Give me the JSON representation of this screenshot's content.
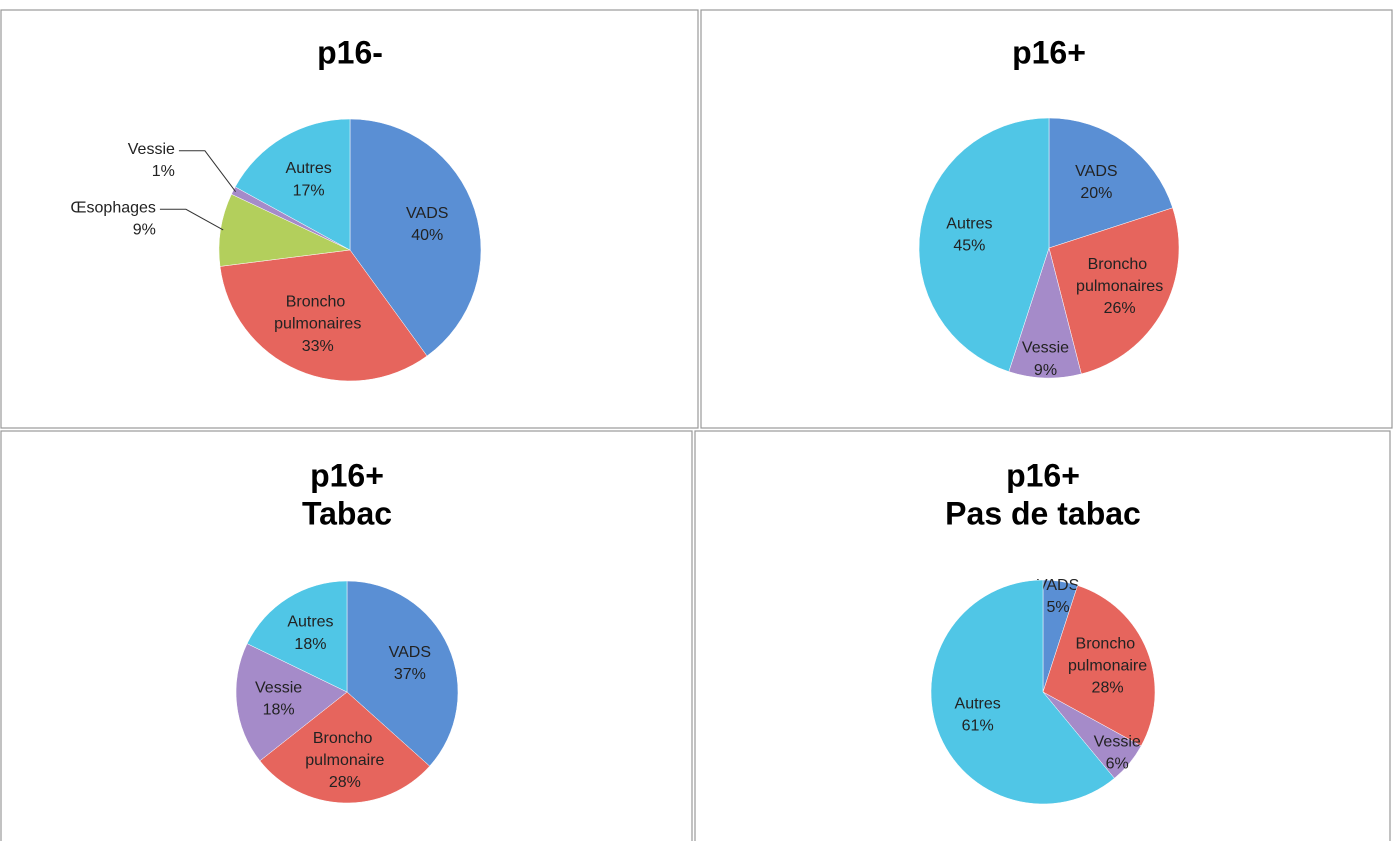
{
  "chart_data": [
    {
      "type": "pie",
      "title": "p16-",
      "categories": [
        "VADS",
        "Broncho pulmonaires",
        "Œsophages",
        "Vessie",
        "Autres"
      ],
      "values": [
        40,
        33,
        9,
        1,
        17
      ],
      "value_labels": [
        "40%",
        "33%",
        "9%",
        "1%",
        "17%"
      ],
      "colors": [
        "#5a8fd4",
        "#e6655d",
        "#b3cf5c",
        "#a58bc9",
        "#50c6e6"
      ]
    },
    {
      "type": "pie",
      "title": "p16+",
      "categories": [
        "VADS",
        "Broncho pulmonaires",
        "Vessie",
        "Autres"
      ],
      "values": [
        20,
        26,
        9,
        45
      ],
      "value_labels": [
        "20%",
        "26%",
        "9%",
        "45%"
      ],
      "colors": [
        "#5a8fd4",
        "#e6655d",
        "#a58bc9",
        "#50c6e6"
      ]
    },
    {
      "type": "pie",
      "title": "p16+",
      "subtitle": "Tabac",
      "categories": [
        "VADS",
        "Broncho pulmonaire",
        "Vessie",
        "Autres"
      ],
      "values": [
        37,
        28,
        18,
        18
      ],
      "value_labels": [
        "37%",
        "28%",
        "18%",
        "18%"
      ],
      "colors": [
        "#5a8fd4",
        "#e6655d",
        "#a58bc9",
        "#50c6e6"
      ]
    },
    {
      "type": "pie",
      "title": "p16+",
      "subtitle": "Pas de tabac",
      "categories": [
        "VADS",
        "Broncho pulmonaire",
        "Vessie",
        "Autres"
      ],
      "values": [
        5,
        28,
        6,
        61
      ],
      "value_labels": [
        "5%",
        "28%",
        "6%",
        "61%"
      ],
      "colors": [
        "#5a8fd4",
        "#e6655d",
        "#a58bc9",
        "#50c6e6"
      ]
    }
  ]
}
